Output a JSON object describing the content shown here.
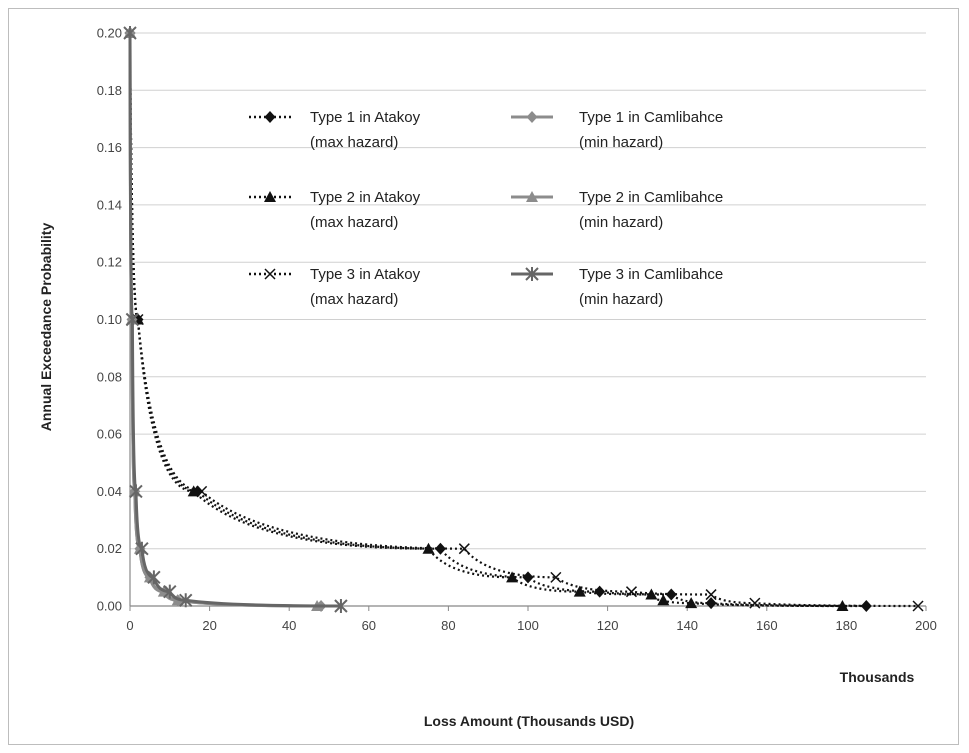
{
  "chart_data": {
    "type": "line",
    "xlabel": "Loss Amount (Thousands USD)",
    "ylabel": "Annual Exceedance Probability",
    "x_units_label": "Thousands",
    "xlim": [
      0,
      200
    ],
    "ylim": [
      0,
      0.2
    ],
    "xticks": [
      "0",
      "20",
      "40",
      "60",
      "80",
      "100",
      "120",
      "140",
      "160",
      "180",
      "200"
    ],
    "yticks": [
      "0.00",
      "0.02",
      "0.04",
      "0.06",
      "0.08",
      "0.10",
      "0.12",
      "0.14",
      "0.16",
      "0.18",
      "0.20"
    ],
    "grid": "horizontal",
    "legend_position": "top-right",
    "series": [
      {
        "name": "Type 1 in Atakoy (max hazard)",
        "label_lines": [
          "Type 1 in Atakoy",
          "(max hazard)"
        ],
        "style": "dotted",
        "marker": "diamond",
        "color": "#111111",
        "x": [
          0,
          2,
          17,
          78,
          100,
          118,
          136,
          146,
          185
        ],
        "y": [
          0.2,
          0.1,
          0.04,
          0.02,
          0.01,
          0.005,
          0.004,
          0.001,
          0.0
        ]
      },
      {
        "name": "Type 2 in Atakoy (max hazard)",
        "label_lines": [
          "Type 2 in Atakoy",
          "(max hazard)"
        ],
        "style": "dotted",
        "marker": "triangle",
        "color": "#111111",
        "x": [
          0,
          2,
          16,
          75,
          96,
          113,
          131,
          134,
          141,
          179
        ],
        "y": [
          0.2,
          0.1,
          0.04,
          0.02,
          0.01,
          0.005,
          0.004,
          0.002,
          0.001,
          0.0
        ]
      },
      {
        "name": "Type 3 in Atakoy (max hazard)",
        "label_lines": [
          "Type 3 in Atakoy",
          "(max hazard)"
        ],
        "style": "dotted",
        "marker": "x",
        "color": "#111111",
        "x": [
          0,
          2,
          18,
          84,
          107,
          126,
          146,
          157,
          198
        ],
        "y": [
          0.2,
          0.1,
          0.04,
          0.02,
          0.01,
          0.005,
          0.004,
          0.001,
          0.0
        ]
      },
      {
        "name": "Type 1 in Camlibahce (min hazard)",
        "label_lines": [
          "Type 1 in Camlibahce",
          " (min hazard)"
        ],
        "style": "solid",
        "marker": "diamond",
        "color": "#8c8c8c",
        "x": [
          0,
          0.5,
          1.2,
          2.5,
          5,
          9,
          12,
          48
        ],
        "y": [
          0.2,
          0.1,
          0.04,
          0.02,
          0.01,
          0.005,
          0.002,
          0.0
        ]
      },
      {
        "name": "Type 2 in Camlibahce (min hazard)",
        "label_lines": [
          "Type 2 in Camlibahce",
          "(min hazard)"
        ],
        "style": "solid",
        "marker": "triangle",
        "color": "#8c8c8c",
        "x": [
          0,
          0.5,
          1.2,
          2.5,
          5,
          8.5,
          12,
          47
        ],
        "y": [
          0.2,
          0.1,
          0.04,
          0.02,
          0.01,
          0.005,
          0.002,
          0.0
        ]
      },
      {
        "name": "Type 3 in Camlibahce (min hazard)",
        "label_lines": [
          "Type 3 in Camlibahce",
          "(min hazard)"
        ],
        "style": "solid",
        "marker": "asterisk",
        "color": "#666666",
        "x": [
          0,
          0.6,
          1.5,
          3,
          6,
          10,
          14,
          53
        ],
        "y": [
          0.2,
          0.1,
          0.04,
          0.02,
          0.01,
          0.005,
          0.002,
          0.0
        ]
      }
    ]
  }
}
